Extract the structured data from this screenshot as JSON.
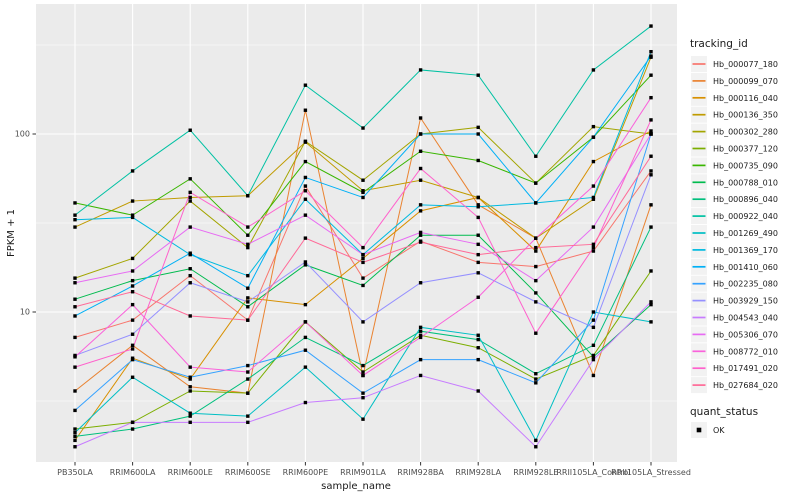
{
  "chart_data": {
    "type": "line",
    "title": "",
    "xlabel": "sample_name",
    "ylabel": "FPKM + 1",
    "y_scale": "log10",
    "ylim": [
      1.4,
      500
    ],
    "y_ticks": [
      {
        "value": 100,
        "label": "100"
      },
      {
        "value": 10,
        "label": "10"
      }
    ],
    "y_minor_ticks": [
      3.162,
      31.62,
      316.2
    ],
    "grid": true,
    "panel_bg": "#EBEBEB",
    "grid_color": "#FFFFFF",
    "point_color": "#000000",
    "legend_position": "right",
    "legend_title": "tracking_id",
    "point_legend": {
      "title": "quant_status",
      "label": "OK"
    },
    "x_categories": [
      "PB350LA",
      "RRIM600LA",
      "RRIM600LE",
      "RRIM600SE",
      "RRIM600PE",
      "RRIM901LA",
      "RRIM928BA",
      "RRIM928LA",
      "RRIM928LE",
      "RRII105LA_Control",
      "RRII105LA_Stressed"
    ],
    "series": [
      {
        "name": "Hb_000077_180",
        "color": "#F8766D",
        "values": [
          7.2,
          9,
          16,
          9,
          51,
          15.5,
          25,
          19,
          18,
          22,
          62
        ]
      },
      {
        "name": "Hb_000099_070",
        "color": "#EA8331",
        "values": [
          3.6,
          6.5,
          3.8,
          3.5,
          136,
          4.4,
          123,
          40,
          26,
          4.4,
          40
        ]
      },
      {
        "name": "Hb_000116_040",
        "color": "#D89000",
        "values": [
          1.9,
          5.5,
          4.2,
          12,
          11,
          20,
          37,
          44,
          22,
          70,
          104
        ]
      },
      {
        "name": "Hb_000136_350",
        "color": "#C09B00",
        "values": [
          30,
          42,
          44,
          45,
          90,
          48,
          55,
          44,
          26,
          43,
          270
        ]
      },
      {
        "name": "Hb_000302_280",
        "color": "#A3A500",
        "values": [
          15.5,
          20,
          42,
          23,
          91,
          55,
          100,
          109,
          53,
          110,
          100
        ]
      },
      {
        "name": "Hb_000377_120",
        "color": "#7CAE00",
        "values": [
          2.2,
          2.4,
          3.6,
          3.5,
          8.8,
          4.6,
          7.4,
          6.3,
          4.2,
          5.7,
          17
        ]
      },
      {
        "name": "Hb_000735_090",
        "color": "#39B600",
        "values": [
          41,
          35,
          56,
          27,
          70,
          47,
          80,
          71,
          53,
          96,
          214
        ]
      },
      {
        "name": "Hb_000788_010",
        "color": "#00BB4E",
        "values": [
          11.8,
          15,
          17.5,
          10.7,
          18.4,
          14.1,
          27,
          27,
          12.8,
          5.6,
          11
        ]
      },
      {
        "name": "Hb_000896_040",
        "color": "#00BF7D",
        "values": [
          2,
          2.2,
          2.6,
          4.2,
          7.2,
          5,
          7.8,
          7,
          4.5,
          6.5,
          30
        ]
      },
      {
        "name": "Hb_000922_040",
        "color": "#00C1A3",
        "values": [
          35,
          62,
          105,
          45,
          188,
          108,
          229,
          214,
          75,
          229,
          404
        ]
      },
      {
        "name": "Hb_001269_490",
        "color": "#00BFC4",
        "values": [
          2.1,
          4.3,
          2.7,
          2.6,
          4.9,
          2.5,
          8.2,
          7.4,
          1.9,
          10,
          8.8
        ]
      },
      {
        "name": "Hb_001369_170",
        "color": "#00BAE0",
        "values": [
          33,
          34,
          21,
          16,
          43,
          21,
          40,
          39,
          41,
          44,
          290
        ]
      },
      {
        "name": "Hb_001410_060",
        "color": "#00B0F6",
        "values": [
          9.5,
          14,
          21.4,
          13.6,
          57,
          44,
          100,
          100,
          41,
          96,
          274
        ]
      },
      {
        "name": "Hb_002235_080",
        "color": "#35A2FF",
        "values": [
          2.8,
          5.4,
          4.3,
          5,
          6.1,
          3.5,
          5.4,
          5.4,
          4,
          9,
          100
        ]
      },
      {
        "name": "Hb_003929_150",
        "color": "#9590FF",
        "values": [
          5.7,
          7.5,
          14.6,
          11.4,
          19.1,
          8.8,
          14.6,
          16.6,
          11.4,
          8.2,
          59
        ]
      },
      {
        "name": "Hb_004543_040",
        "color": "#C77CFF",
        "values": [
          1.75,
          2.4,
          2.4,
          2.4,
          3.1,
          3.3,
          4.4,
          3.6,
          1.75,
          5.4,
          11.4
        ]
      },
      {
        "name": "Hb_005306_070",
        "color": "#E76BF3",
        "values": [
          14.6,
          17,
          30,
          24,
          35,
          21,
          28,
          24,
          15,
          30,
          100
        ]
      },
      {
        "name": "Hb_008772_010",
        "color": "#FA62DB",
        "values": [
          5.6,
          11,
          4.9,
          4.6,
          8.8,
          4.4,
          7.2,
          12.1,
          26,
          51,
          160
        ]
      },
      {
        "name": "Hb_017491_020",
        "color": "#FF61CC",
        "values": [
          4.9,
          6.2,
          47,
          30,
          48,
          23,
          64,
          34,
          7.6,
          23,
          120
        ]
      },
      {
        "name": "Hb_027684_020",
        "color": "#FF6A98",
        "values": [
          10.7,
          13,
          9.5,
          9,
          26,
          19,
          24.7,
          21,
          23,
          24,
          75
        ]
      }
    ]
  }
}
